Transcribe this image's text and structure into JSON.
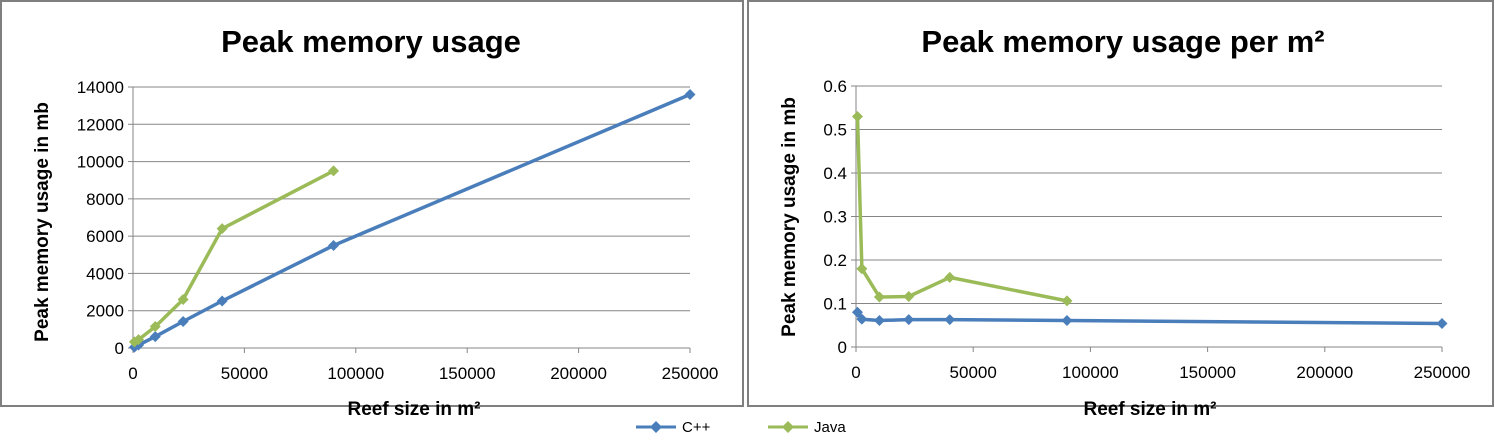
{
  "colors": {
    "cpp": "#4a7ebb",
    "java": "#9bbb59",
    "frame": "#7f7f7f"
  },
  "legend": [
    {
      "name": "C++",
      "color": "#4a7ebb"
    },
    {
      "name": "Java",
      "color": "#9bbb59"
    }
  ],
  "chart_data": [
    {
      "type": "line",
      "title": "Peak memory usage",
      "xlabel": "Reef size in m²",
      "ylabel": "Peak memory usage in mb",
      "xlim": [
        0,
        250000
      ],
      "ylim": [
        0,
        14000
      ],
      "xticks": [
        "0",
        "50000",
        "100000",
        "150000",
        "200000",
        "250000"
      ],
      "yticks": [
        "0",
        "2000",
        "4000",
        "6000",
        "8000",
        "10000",
        "12000",
        "14000"
      ],
      "grid": true,
      "series": [
        {
          "name": "C++",
          "x": [
            625,
            2500,
            10000,
            22500,
            40000,
            90000,
            250000
          ],
          "y": [
            50,
            160,
            610,
            1420,
            2520,
            5500,
            13600
          ]
        },
        {
          "name": "Java",
          "x": [
            625,
            2500,
            10000,
            22500,
            40000,
            90000
          ],
          "y": [
            330,
            450,
            1150,
            2600,
            6400,
            9500
          ]
        }
      ]
    },
    {
      "type": "line",
      "title": "Peak memory usage per m²",
      "xlabel": "Reef size in m²",
      "ylabel": "Peak memory usage in mb",
      "xlim": [
        0,
        250000
      ],
      "ylim": [
        0,
        0.6
      ],
      "xticks": [
        "0",
        "50000",
        "100000",
        "150000",
        "200000",
        "250000"
      ],
      "yticks": [
        "0",
        "0.1",
        "0.2",
        "0.3",
        "0.4",
        "0.5",
        "0.6"
      ],
      "grid": true,
      "series": [
        {
          "name": "C++",
          "x": [
            625,
            2500,
            10000,
            22500,
            40000,
            90000,
            250000
          ],
          "y": [
            0.08,
            0.064,
            0.061,
            0.063,
            0.063,
            0.061,
            0.054
          ]
        },
        {
          "name": "Java",
          "x": [
            625,
            2500,
            10000,
            22500,
            40000,
            90000
          ],
          "y": [
            0.53,
            0.18,
            0.115,
            0.116,
            0.16,
            0.106
          ]
        }
      ]
    }
  ]
}
